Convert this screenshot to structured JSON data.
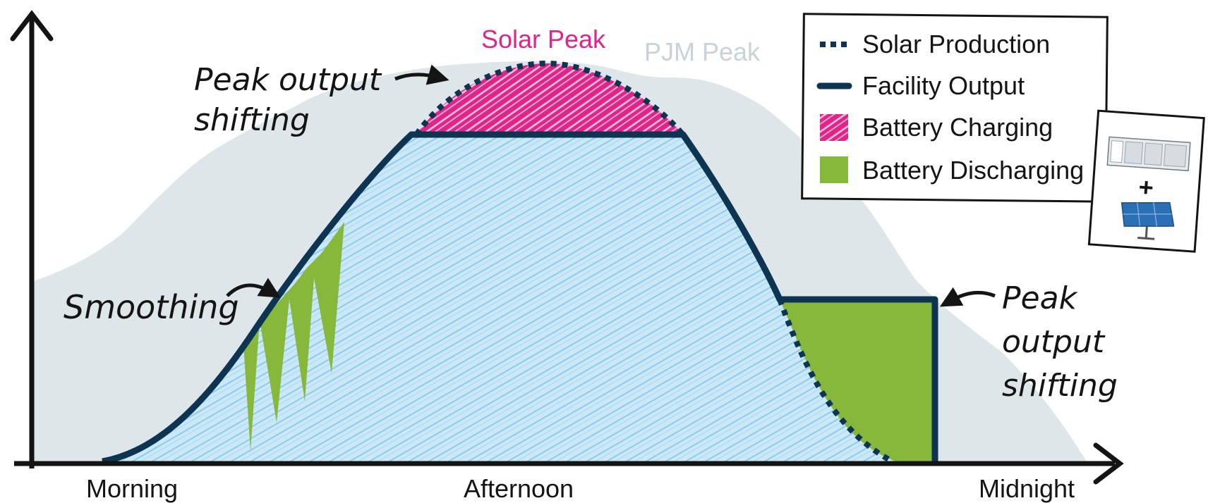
{
  "colors": {
    "axis": "#141414",
    "outline": "#0d3450",
    "solar_fill": "#cbe8f7",
    "solar_hatch": "#8ccbec",
    "pjm_fill": "#dfe6ea",
    "charging": "#e0258a",
    "discharging": "#87b83c",
    "solar_peak_text": "#e0258a",
    "pjm_peak_text": "#c8d2d9"
  },
  "labels": {
    "solar_peak": "Solar Peak",
    "pjm_peak": "PJM Peak",
    "annotation_left_line1": "Peak output",
    "annotation_left_line2": "shifting",
    "annotation_smoothing": "Smoothing",
    "annotation_right_line1": "Peak",
    "annotation_right_line2": "output",
    "annotation_right_line3": "shifting"
  },
  "axis": {
    "x_ticks": [
      "Morning",
      "Afternoon",
      "Midnight"
    ]
  },
  "legend": {
    "items": [
      {
        "label": "Solar Production",
        "icon": "dotted-line-icon"
      },
      {
        "label": "Facility Output",
        "icon": "solid-line-icon"
      },
      {
        "label": "Battery Charging",
        "icon": "hatched-swatch-icon"
      },
      {
        "label": "Battery Discharging",
        "icon": "green-swatch-icon"
      }
    ]
  },
  "inset": {
    "plus_sign": "+",
    "icons": [
      "battery-storage-icon",
      "solar-panel-icon"
    ]
  }
}
